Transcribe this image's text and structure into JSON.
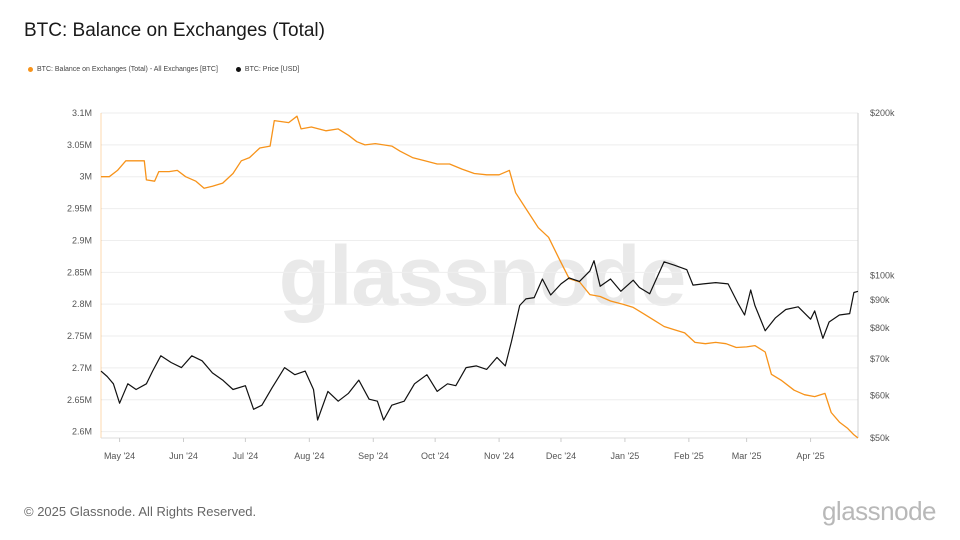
{
  "page": {
    "title": "BTC: Balance on Exchanges (Total)",
    "footer": "© 2025 Glassnode. All Rights Reserved.",
    "brand": "glassnode",
    "watermark": "glassnode"
  },
  "chart_data": {
    "type": "line",
    "title": "BTC: Balance on Exchanges (Total)",
    "legend_position": "top-left",
    "grid": true,
    "x_tick_labels": [
      "May '24",
      "Jun '24",
      "Jul '24",
      "Aug '24",
      "Sep '24",
      "Oct '24",
      "Nov '24",
      "Dec '24",
      "Jan '25",
      "Feb '25",
      "Mar '25",
      "Apr '25"
    ],
    "x_ticks": [
      "2024-05-01",
      "2024-06-01",
      "2024-07-01",
      "2024-08-01",
      "2024-09-01",
      "2024-10-01",
      "2024-11-01",
      "2024-12-01",
      "2025-01-01",
      "2025-02-01",
      "2025-03-01",
      "2025-04-01"
    ],
    "xlim": [
      "2024-04-22",
      "2025-04-24"
    ],
    "y_left": {
      "label": "",
      "ylim": [
        2590000,
        3100000
      ],
      "tick_values": [
        2600000,
        2650000,
        2700000,
        2750000,
        2800000,
        2850000,
        2900000,
        2950000,
        3000000,
        3050000,
        3100000
      ],
      "tick_labels": [
        "2.6M",
        "2.65M",
        "2.7M",
        "2.75M",
        "2.8M",
        "2.85M",
        "2.9M",
        "2.95M",
        "3M",
        "3.05M",
        "3.1M"
      ]
    },
    "y_right": {
      "label": "",
      "scale": "log",
      "ylim": [
        50000,
        200000
      ],
      "tick_values": [
        50000,
        60000,
        70000,
        80000,
        90000,
        100000,
        200000
      ],
      "tick_labels": [
        "$50k",
        "$60k",
        "$70k",
        "$80k",
        "$90k",
        "$100k",
        "$200k"
      ]
    },
    "series": [
      {
        "name": "BTC: Balance on Exchanges (Total) - All Exchanges [BTC]",
        "color": "#f7931a",
        "axis": "left",
        "points": [
          [
            "2024-04-22",
            3000000
          ],
          [
            "2024-04-26",
            3000000
          ],
          [
            "2024-04-30",
            3010000
          ],
          [
            "2024-05-04",
            3025000
          ],
          [
            "2024-05-09",
            3025000
          ],
          [
            "2024-05-13",
            3025000
          ],
          [
            "2024-05-14",
            2995000
          ],
          [
            "2024-05-18",
            2993000
          ],
          [
            "2024-05-20",
            3008000
          ],
          [
            "2024-05-25",
            3008000
          ],
          [
            "2024-05-29",
            3010000
          ],
          [
            "2024-06-02",
            3000000
          ],
          [
            "2024-06-07",
            2993000
          ],
          [
            "2024-06-11",
            2982000
          ],
          [
            "2024-06-15",
            2985000
          ],
          [
            "2024-06-20",
            2990000
          ],
          [
            "2024-06-25",
            3005000
          ],
          [
            "2024-06-29",
            3025000
          ],
          [
            "2024-07-03",
            3030000
          ],
          [
            "2024-07-08",
            3045000
          ],
          [
            "2024-07-13",
            3048000
          ],
          [
            "2024-07-15",
            3088000
          ],
          [
            "2024-07-22",
            3085000
          ],
          [
            "2024-07-26",
            3095000
          ],
          [
            "2024-07-28",
            3075000
          ],
          [
            "2024-08-02",
            3078000
          ],
          [
            "2024-08-09",
            3072000
          ],
          [
            "2024-08-15",
            3075000
          ],
          [
            "2024-08-20",
            3065000
          ],
          [
            "2024-08-24",
            3055000
          ],
          [
            "2024-08-28",
            3050000
          ],
          [
            "2024-09-02",
            3052000
          ],
          [
            "2024-09-06",
            3050000
          ],
          [
            "2024-09-10",
            3048000
          ],
          [
            "2024-09-14",
            3040000
          ],
          [
            "2024-09-20",
            3030000
          ],
          [
            "2024-09-26",
            3025000
          ],
          [
            "2024-10-02",
            3020000
          ],
          [
            "2024-10-08",
            3020000
          ],
          [
            "2024-10-14",
            3012000
          ],
          [
            "2024-10-20",
            3005000
          ],
          [
            "2024-10-26",
            3003000
          ],
          [
            "2024-11-01",
            3003000
          ],
          [
            "2024-11-06",
            3010000
          ],
          [
            "2024-11-09",
            2975000
          ],
          [
            "2024-11-14",
            2950000
          ],
          [
            "2024-11-20",
            2920000
          ],
          [
            "2024-11-25",
            2905000
          ],
          [
            "2024-11-30",
            2872000
          ],
          [
            "2024-12-05",
            2840000
          ],
          [
            "2024-12-10",
            2835000
          ],
          [
            "2024-12-15",
            2815000
          ],
          [
            "2024-12-20",
            2812000
          ],
          [
            "2024-12-25",
            2805000
          ],
          [
            "2024-12-31",
            2800000
          ],
          [
            "2025-01-05",
            2795000
          ],
          [
            "2025-01-10",
            2785000
          ],
          [
            "2025-01-15",
            2775000
          ],
          [
            "2025-01-20",
            2765000
          ],
          [
            "2025-01-25",
            2760000
          ],
          [
            "2025-01-30",
            2755000
          ],
          [
            "2025-02-04",
            2740000
          ],
          [
            "2025-02-09",
            2738000
          ],
          [
            "2025-02-14",
            2740000
          ],
          [
            "2025-02-19",
            2738000
          ],
          [
            "2025-02-24",
            2732000
          ],
          [
            "2025-03-01",
            2733000
          ],
          [
            "2025-03-05",
            2735000
          ],
          [
            "2025-03-10",
            2725000
          ],
          [
            "2025-03-13",
            2690000
          ],
          [
            "2025-03-18",
            2680000
          ],
          [
            "2025-03-24",
            2665000
          ],
          [
            "2025-03-29",
            2658000
          ],
          [
            "2025-04-03",
            2655000
          ],
          [
            "2025-04-08",
            2660000
          ],
          [
            "2025-04-11",
            2630000
          ],
          [
            "2025-04-15",
            2615000
          ],
          [
            "2025-04-19",
            2605000
          ],
          [
            "2025-04-22",
            2595000
          ],
          [
            "2025-04-24",
            2590000
          ]
        ]
      },
      {
        "name": "BTC: Price [USD]",
        "color": "#111111",
        "axis": "right",
        "points": [
          [
            "2024-04-22",
            66500
          ],
          [
            "2024-04-25",
            65000
          ],
          [
            "2024-04-28",
            63000
          ],
          [
            "2024-05-01",
            58000
          ],
          [
            "2024-05-05",
            63000
          ],
          [
            "2024-05-09",
            61500
          ],
          [
            "2024-05-14",
            63000
          ],
          [
            "2024-05-17",
            66500
          ],
          [
            "2024-05-21",
            71000
          ],
          [
            "2024-05-26",
            69000
          ],
          [
            "2024-05-31",
            67500
          ],
          [
            "2024-06-05",
            71000
          ],
          [
            "2024-06-10",
            69500
          ],
          [
            "2024-06-15",
            66000
          ],
          [
            "2024-06-20",
            64000
          ],
          [
            "2024-06-25",
            61500
          ],
          [
            "2024-07-01",
            62500
          ],
          [
            "2024-07-05",
            56500
          ],
          [
            "2024-07-09",
            57500
          ],
          [
            "2024-07-14",
            62000
          ],
          [
            "2024-07-20",
            67500
          ],
          [
            "2024-07-25",
            65500
          ],
          [
            "2024-07-30",
            66500
          ],
          [
            "2024-08-03",
            61500
          ],
          [
            "2024-08-05",
            54000
          ],
          [
            "2024-08-10",
            61000
          ],
          [
            "2024-08-15",
            58500
          ],
          [
            "2024-08-20",
            60500
          ],
          [
            "2024-08-25",
            64000
          ],
          [
            "2024-08-30",
            59000
          ],
          [
            "2024-09-03",
            58500
          ],
          [
            "2024-09-06",
            54000
          ],
          [
            "2024-09-10",
            57500
          ],
          [
            "2024-09-16",
            58500
          ],
          [
            "2024-09-21",
            63000
          ],
          [
            "2024-09-27",
            65500
          ],
          [
            "2024-10-02",
            61000
          ],
          [
            "2024-10-07",
            63000
          ],
          [
            "2024-10-11",
            62500
          ],
          [
            "2024-10-16",
            67500
          ],
          [
            "2024-10-21",
            68000
          ],
          [
            "2024-10-26",
            67000
          ],
          [
            "2024-10-31",
            70500
          ],
          [
            "2024-11-04",
            68000
          ],
          [
            "2024-11-07",
            75500
          ],
          [
            "2024-11-11",
            88000
          ],
          [
            "2024-11-14",
            90500
          ],
          [
            "2024-11-18",
            91000
          ],
          [
            "2024-11-22",
            98500
          ],
          [
            "2024-11-26",
            92000
          ],
          [
            "2024-12-01",
            96500
          ],
          [
            "2024-12-05",
            99000
          ],
          [
            "2024-12-10",
            97500
          ],
          [
            "2024-12-15",
            102000
          ],
          [
            "2024-12-17",
            106500
          ],
          [
            "2024-12-20",
            95500
          ],
          [
            "2024-12-25",
            98500
          ],
          [
            "2024-12-30",
            93500
          ],
          [
            "2025-01-05",
            98000
          ],
          [
            "2025-01-08",
            95000
          ],
          [
            "2025-01-13",
            92500
          ],
          [
            "2025-01-20",
            106000
          ],
          [
            "2025-01-25",
            104500
          ],
          [
            "2025-01-31",
            102500
          ],
          [
            "2025-02-03",
            96000
          ],
          [
            "2025-02-08",
            96500
          ],
          [
            "2025-02-14",
            97000
          ],
          [
            "2025-02-20",
            96500
          ],
          [
            "2025-02-25",
            88500
          ],
          [
            "2025-02-28",
            84500
          ],
          [
            "2025-03-03",
            94000
          ],
          [
            "2025-03-05",
            88000
          ],
          [
            "2025-03-10",
            79000
          ],
          [
            "2025-03-15",
            83500
          ],
          [
            "2025-03-20",
            86500
          ],
          [
            "2025-03-26",
            87500
          ],
          [
            "2025-04-01",
            83000
          ],
          [
            "2025-04-03",
            86000
          ],
          [
            "2025-04-07",
            76500
          ],
          [
            "2025-04-10",
            82000
          ],
          [
            "2025-04-15",
            84500
          ],
          [
            "2025-04-20",
            85000
          ],
          [
            "2025-04-22",
            93000
          ],
          [
            "2025-04-24",
            93500
          ]
        ]
      }
    ]
  }
}
